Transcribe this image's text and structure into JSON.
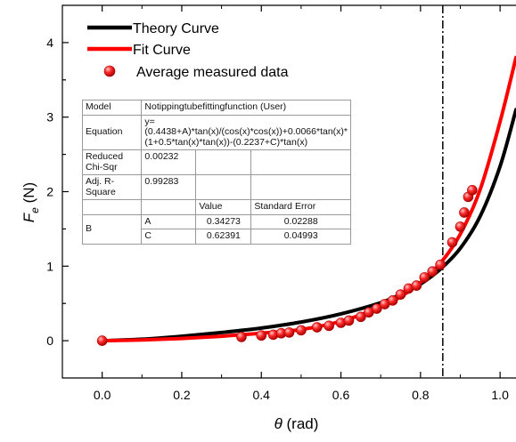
{
  "chart_data": {
    "type": "line",
    "xlabel": "θ (rad)",
    "ylabel": "F_e (N)",
    "xlim": [
      -0.1,
      1.04
    ],
    "ylim": [
      -0.5,
      4.5
    ],
    "xticks": [
      "0.0",
      "0.2",
      "0.4",
      "0.6",
      "0.8",
      "1.0"
    ],
    "yticks": [
      "0",
      "1",
      "2",
      "3",
      "4"
    ],
    "grid": false,
    "legend_position": "top-left",
    "vertical_reference_line": 0.856,
    "series": [
      {
        "name": "Theory Curve",
        "type": "line",
        "color": "#000000",
        "x": [
          0,
          0.1,
          0.2,
          0.3,
          0.4,
          0.5,
          0.6,
          0.7,
          0.75,
          0.8,
          0.85,
          0.9,
          0.95,
          1.0,
          1.04
        ],
        "y": [
          0,
          0.02,
          0.06,
          0.11,
          0.17,
          0.25,
          0.36,
          0.51,
          0.62,
          0.76,
          0.96,
          1.24,
          1.67,
          2.34,
          3.1
        ]
      },
      {
        "name": "Fit Curve",
        "type": "line",
        "color": "#ff0000",
        "x": [
          0,
          0.1,
          0.2,
          0.3,
          0.4,
          0.5,
          0.6,
          0.7,
          0.75,
          0.8,
          0.85,
          0.9,
          0.95,
          1.0,
          1.04
        ],
        "y": [
          0,
          0.01,
          0.03,
          0.06,
          0.1,
          0.15,
          0.26,
          0.45,
          0.59,
          0.78,
          1.04,
          1.43,
          2.03,
          2.94,
          3.8
        ]
      },
      {
        "name": "Average measured data",
        "type": "scatter",
        "color": "#e00000",
        "x": [
          0,
          0.35,
          0.4,
          0.43,
          0.45,
          0.47,
          0.5,
          0.54,
          0.57,
          0.6,
          0.62,
          0.65,
          0.67,
          0.69,
          0.71,
          0.73,
          0.75,
          0.77,
          0.79,
          0.81,
          0.83,
          0.85,
          0.88,
          0.9,
          0.91,
          0.92,
          0.93
        ],
        "y": [
          0,
          0.05,
          0.07,
          0.08,
          0.1,
          0.11,
          0.14,
          0.18,
          0.2,
          0.24,
          0.27,
          0.32,
          0.38,
          0.43,
          0.49,
          0.54,
          0.62,
          0.7,
          0.74,
          0.85,
          0.93,
          1.02,
          1.32,
          1.53,
          1.72,
          1.93,
          2.02
        ]
      }
    ]
  },
  "fit_table": {
    "model_label": "Model",
    "model_value": "Notippingtubefittingfunction (User)",
    "equation_label": "Equation",
    "equation_value": "y=(0.4438+A)*tan(x)/(cos(x)*cos(x))+0.0066*tan(x)*(1+0.5*tan(x)*tan(x))-(0.2237+C)*tan(x)",
    "reduced_chi_label": "Reduced Chi-Sqr",
    "reduced_chi_value": "0.00232",
    "adj_r2_label": "Adj. R-Square",
    "adj_r2_value": "0.99283",
    "col_value": "Value",
    "col_std_error": "Standard Error",
    "param_group": "B",
    "rows": [
      {
        "param": "A",
        "value": "0.34273",
        "error": "0.02288"
      },
      {
        "param": "C",
        "value": "0.62391",
        "error": "0.04993"
      }
    ]
  }
}
